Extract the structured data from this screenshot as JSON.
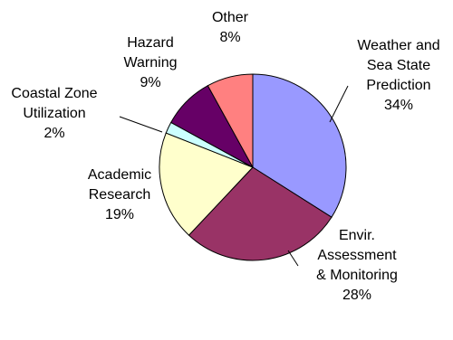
{
  "chart_data": {
    "type": "pie",
    "title": "",
    "slices": [
      {
        "label_lines": [
          "Weather and",
          "Sea State",
          "Prediction"
        ],
        "percent_label": "34%",
        "value": 34,
        "color": "#9999FF"
      },
      {
        "label_lines": [
          "Envir.",
          "Assessment",
          "& Monitoring"
        ],
        "percent_label": "28%",
        "value": 28,
        "color": "#993366"
      },
      {
        "label_lines": [
          "Academic",
          "Research"
        ],
        "percent_label": "19%",
        "value": 19,
        "color": "#FFFFCC"
      },
      {
        "label_lines": [
          "Coastal Zone",
          "Utilization"
        ],
        "percent_label": "2%",
        "value": 2,
        "color": "#CCFFFF"
      },
      {
        "label_lines": [
          "Hazard",
          "Warning"
        ],
        "percent_label": "9%",
        "value": 9,
        "color": "#660066"
      },
      {
        "label_lines": [
          "Other"
        ],
        "percent_label": "8%",
        "value": 8,
        "color": "#FF8080"
      }
    ],
    "legend": "none",
    "grid": false
  }
}
